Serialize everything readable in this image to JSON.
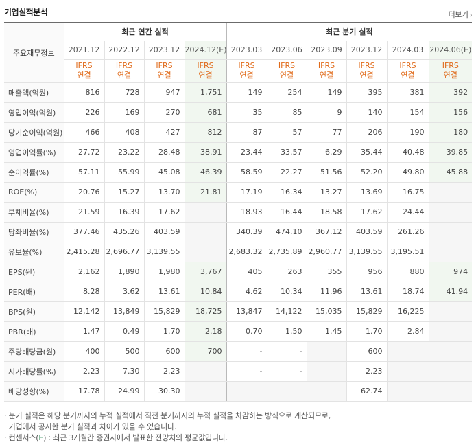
{
  "title": "기업실적분석",
  "more_label": "더보기",
  "header": {
    "label": "주요재무정보",
    "annual_group": "최근 연간 실적",
    "quarter_group": "최근 분기 실적",
    "periods": [
      "2021.12",
      "2022.12",
      "2023.12",
      "2024.12(E)",
      "2023.03",
      "2023.06",
      "2023.09",
      "2023.12",
      "2024.03",
      "2024.06(E)"
    ],
    "ifrs_top": "IFRS",
    "ifrs_bottom": "연결"
  },
  "rows": [
    {
      "label": "매출액(억원)",
      "values": [
        "816",
        "728",
        "947",
        "1,751",
        "149",
        "254",
        "149",
        "395",
        "381",
        "392"
      ]
    },
    {
      "label": "영업이익(억원)",
      "values": [
        "226",
        "169",
        "270",
        "681",
        "35",
        "85",
        "9",
        "140",
        "154",
        "156"
      ]
    },
    {
      "label": "당기순이익(억원)",
      "values": [
        "466",
        "408",
        "427",
        "812",
        "87",
        "57",
        "77",
        "206",
        "190",
        "180"
      ]
    },
    {
      "label": "영업이익률(%)",
      "values": [
        "27.72",
        "23.22",
        "28.48",
        "38.91",
        "23.44",
        "33.57",
        "6.29",
        "35.44",
        "40.48",
        "39.85"
      ]
    },
    {
      "label": "순이익률(%)",
      "values": [
        "57.11",
        "55.99",
        "45.08",
        "46.39",
        "58.59",
        "22.27",
        "51.56",
        "52.20",
        "49.80",
        "45.88"
      ]
    },
    {
      "label": "ROE(%)",
      "values": [
        "20.76",
        "15.27",
        "13.70",
        "21.81",
        "17.19",
        "16.34",
        "13.27",
        "13.69",
        "16.75",
        ""
      ]
    },
    {
      "label": "부채비율(%)",
      "values": [
        "21.59",
        "16.39",
        "17.62",
        "",
        "18.93",
        "16.44",
        "18.58",
        "17.62",
        "24.44",
        ""
      ]
    },
    {
      "label": "당좌비율(%)",
      "values": [
        "377.46",
        "435.26",
        "403.59",
        "",
        "340.39",
        "474.10",
        "367.12",
        "403.59",
        "261.26",
        ""
      ]
    },
    {
      "label": "유보율(%)",
      "values": [
        "2,415.28",
        "2,696.77",
        "3,139.55",
        "",
        "2,683.32",
        "2,735.89",
        "2,960.77",
        "3,139.55",
        "3,195.51",
        ""
      ]
    },
    {
      "label": "EPS(원)",
      "values": [
        "2,162",
        "1,890",
        "1,980",
        "3,767",
        "405",
        "263",
        "355",
        "956",
        "880",
        "974"
      ]
    },
    {
      "label": "PER(배)",
      "values": [
        "8.28",
        "3.62",
        "13.61",
        "10.84",
        "4.62",
        "10.34",
        "11.96",
        "13.61",
        "18.74",
        "41.94"
      ]
    },
    {
      "label": "BPS(원)",
      "values": [
        "12,142",
        "13,849",
        "15,829",
        "18,725",
        "13,847",
        "14,122",
        "15,035",
        "15,829",
        "16,225",
        ""
      ]
    },
    {
      "label": "PBR(배)",
      "values": [
        "1.47",
        "0.49",
        "1.70",
        "2.18",
        "0.70",
        "1.50",
        "1.45",
        "1.70",
        "2.84",
        ""
      ]
    },
    {
      "label": "주당배당금(원)",
      "values": [
        "400",
        "500",
        "600",
        "700",
        "-",
        "-",
        "",
        "600",
        "",
        ""
      ]
    },
    {
      "label": "시가배당률(%)",
      "values": [
        "2.23",
        "7.30",
        "2.23",
        "",
        "-",
        "-",
        "",
        "2.23",
        "",
        ""
      ]
    },
    {
      "label": "배당성향(%)",
      "values": [
        "17.78",
        "24.99",
        "30.30",
        "",
        "",
        "",
        "",
        "62.74",
        "",
        ""
      ]
    }
  ],
  "notes": {
    "line1": "분기 실적은 해당 분기까지의 누적 실적에서 직전 분기까지의 누적 실적을 차감하는 방식으로 계산되므로,",
    "line2": "기업에서 공시한 분기 실적과 차이가 있을 수 있습니다.",
    "line3_pre": "컨센서스(",
    "line3_e": "E",
    "line3_post": ") : 최근 3개월간 증권사에서 발표한 전망치의 평균값입니다."
  },
  "colors": {
    "ifrs": "#e06b1b",
    "estimate_bg": "#f1f7f0",
    "empty_bg": "#f6f6f6"
  }
}
